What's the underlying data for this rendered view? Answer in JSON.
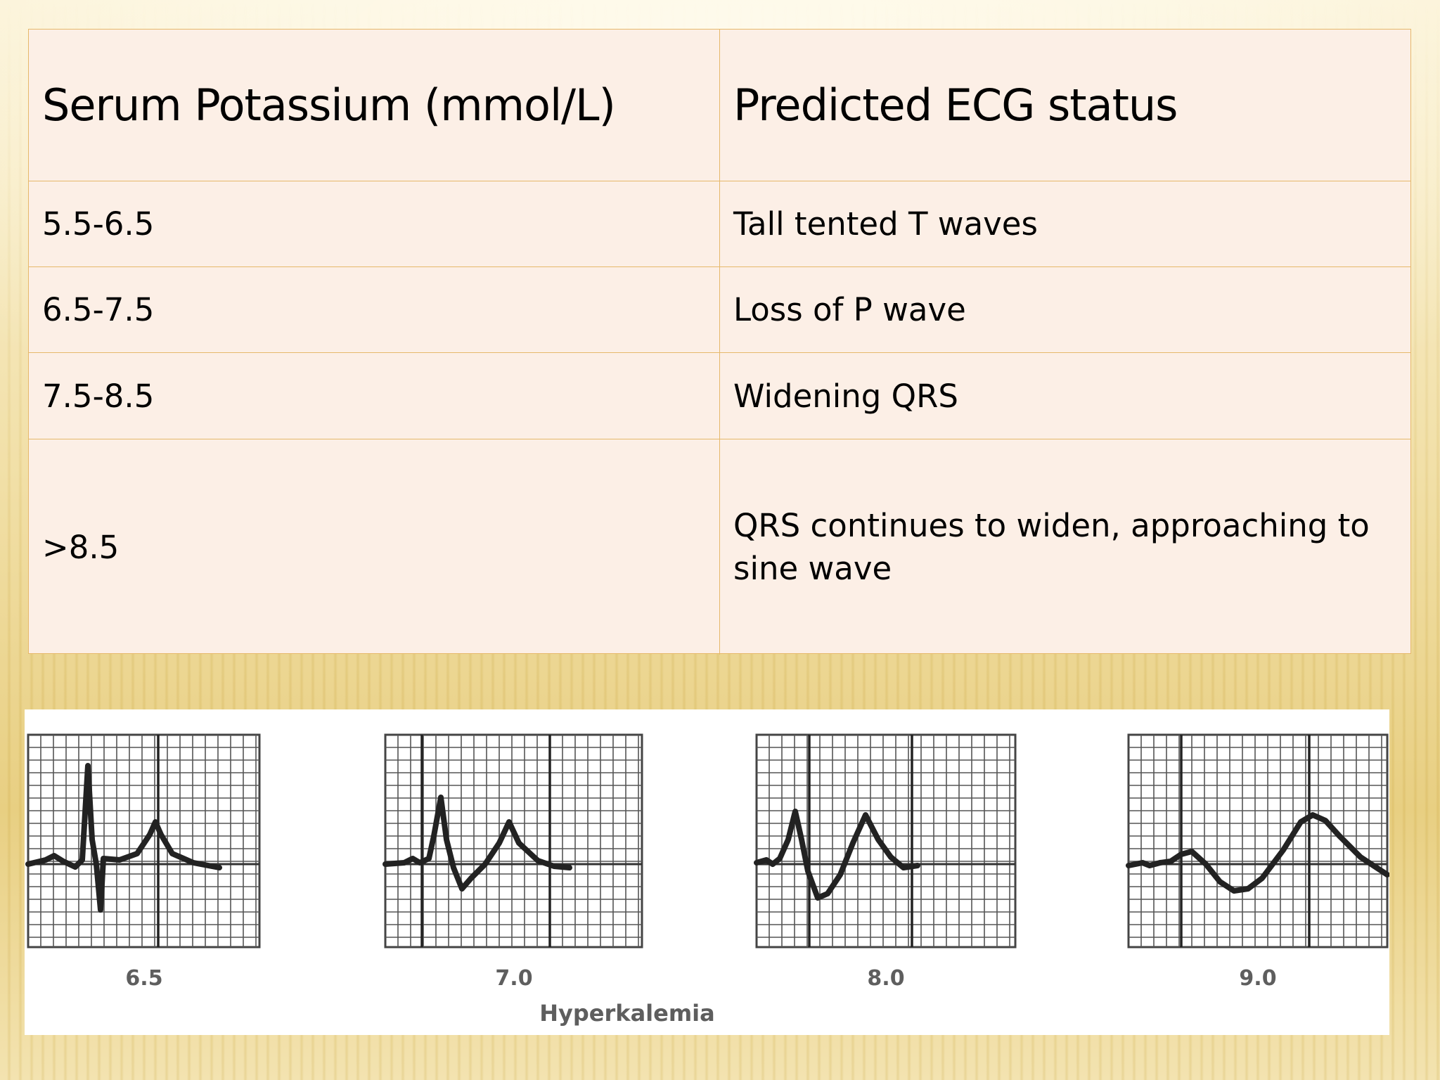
{
  "table": {
    "headers": [
      "Serum Potassium (mmol/L)",
      "Predicted ECG status"
    ],
    "rows": [
      {
        "potassium": "5.5-6.5",
        "status": "Tall tented T waves"
      },
      {
        "potassium": "6.5-7.5",
        "status": "Loss of P wave"
      },
      {
        "potassium": "7.5-8.5",
        "status": "Widening QRS"
      },
      {
        "potassium": ">8.5",
        "status": "QRS continues to widen, approaching to sine wave"
      }
    ]
  },
  "figure": {
    "panel_labels": [
      "6.5",
      "7.0",
      "8.0",
      "9.0"
    ],
    "caption": "Hyperkalemia"
  },
  "colors": {
    "table_background": "#fcefe6",
    "table_border": "#e6b86a",
    "trace": "#222222"
  }
}
